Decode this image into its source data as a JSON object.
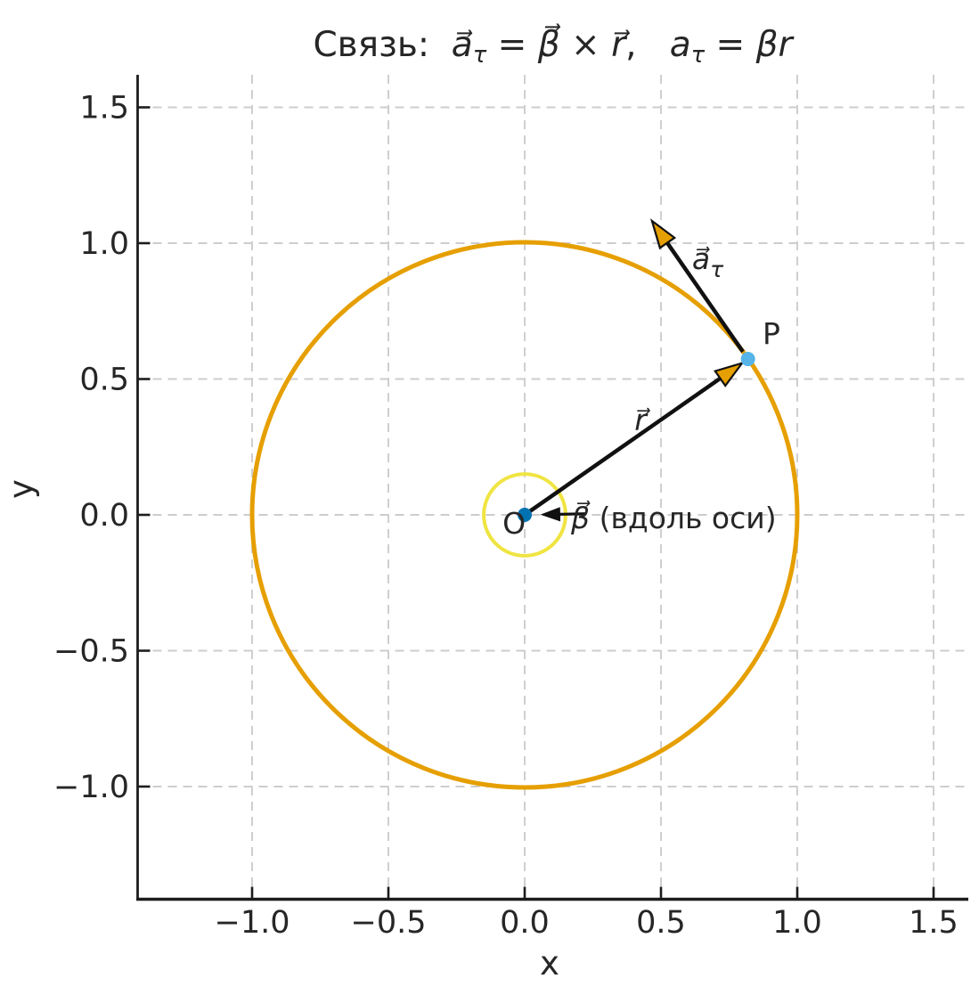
{
  "title": {
    "parts": [
      {
        "t": "Связь:  ",
        "s": "plain"
      },
      {
        "t": "a⃗",
        "s": "it"
      },
      {
        "t": "τ",
        "s": "sub"
      },
      {
        "t": " = ",
        "s": "plain"
      },
      {
        "t": "β⃗",
        "s": "it"
      },
      {
        "t": " × ",
        "s": "plain"
      },
      {
        "t": "r⃗",
        "s": "it"
      },
      {
        "t": ",   ",
        "s": "plain"
      },
      {
        "t": "a",
        "s": "it"
      },
      {
        "t": "τ",
        "s": "sub"
      },
      {
        "t": " = ",
        "s": "plain"
      },
      {
        "t": "βr",
        "s": "it"
      }
    ]
  },
  "chart_data": {
    "type": "diagram",
    "title_text": "Связь: a⃗τ = β⃗ × r⃗,  aτ = βr",
    "xlabel": "x",
    "ylabel": "y",
    "xlim": [
      -1.42,
      1.63
    ],
    "ylim": [
      -1.43,
      1.62
    ],
    "grid": {
      "visible": true,
      "style": "dashed",
      "color": "#CDCDCD"
    },
    "x_ticks": [
      -1.0,
      -0.5,
      0.0,
      0.5,
      1.0,
      1.5
    ],
    "x_tick_labels": [
      "−1.0",
      "−0.5",
      "0.0",
      "0.5",
      "1.0",
      "1.5"
    ],
    "y_ticks": [
      1.5,
      1.0,
      0.5,
      0.0,
      -0.5,
      -1.0
    ],
    "y_tick_labels": [
      "1.5",
      "1.0",
      "0.5",
      "0.0",
      "−0.5",
      "−1.0"
    ],
    "circles": [
      {
        "name": "trajectory-circle",
        "cx": 0,
        "cy": 0,
        "r": 1.0,
        "stroke": "#E69F00",
        "stroke_width": 5
      },
      {
        "name": "hub-circle",
        "cx": 0,
        "cy": 0,
        "r": 0.15,
        "stroke": "#F0E442",
        "stroke_width": 4
      }
    ],
    "points": [
      {
        "name": "point-O",
        "x": 0.0,
        "y": 0.0,
        "radius_px": 8,
        "color": "#0072B2"
      },
      {
        "name": "point-P",
        "x": 0.8192,
        "y": 0.5736,
        "radius_px": 8,
        "color": "#56B4E9",
        "angle_deg": 35
      }
    ],
    "vectors": [
      {
        "name": "vector-r",
        "from": [
          0,
          0
        ],
        "to": [
          0.8192,
          0.5736
        ],
        "shaft_color": "#111111",
        "head_color": "#E69F00"
      },
      {
        "name": "vector-a-tau",
        "from": [
          0.8192,
          0.5736
        ],
        "to": [
          0.467,
          1.082
        ],
        "shaft_color": "#111111",
        "head_color": "#E69F00"
      },
      {
        "name": "vector-beta",
        "from": [
          0.222,
          0.004
        ],
        "to": [
          0.068,
          0.001
        ],
        "shaft_color": "#111111",
        "head_color": "#111111"
      }
    ],
    "annotations": [
      {
        "name": "label-r",
        "x": 0.425,
        "y": 0.311,
        "parts": [
          {
            "t": "r⃗",
            "s": "it"
          }
        ]
      },
      {
        "name": "label-a-tau",
        "x": 0.614,
        "y": 0.905,
        "parts": [
          {
            "t": "a⃗",
            "s": "it"
          },
          {
            "t": "τ",
            "s": "sub"
          }
        ]
      },
      {
        "name": "label-beta",
        "x": 0.17,
        "y": -0.049,
        "parts": [
          {
            "t": "β⃗",
            "s": "it"
          },
          {
            "t": " (вдоль оси)",
            "s": "plain"
          }
        ]
      },
      {
        "name": "label-P",
        "x": 0.905,
        "y": 0.63,
        "parts": [
          {
            "t": "P",
            "s": "plain"
          }
        ]
      },
      {
        "name": "label-O",
        "x": -0.039,
        "y": -0.069,
        "parts": [
          {
            "t": "O",
            "s": "plain"
          }
        ]
      }
    ],
    "colors": {
      "trajectory": "#E69F00",
      "hub": "#F0E442",
      "point_P": "#56B4E9",
      "point_O": "#0072B2",
      "vectors": "#111111",
      "grid": "#CDCDCD",
      "text": "#262626",
      "spine": "#1C1C1C"
    }
  }
}
